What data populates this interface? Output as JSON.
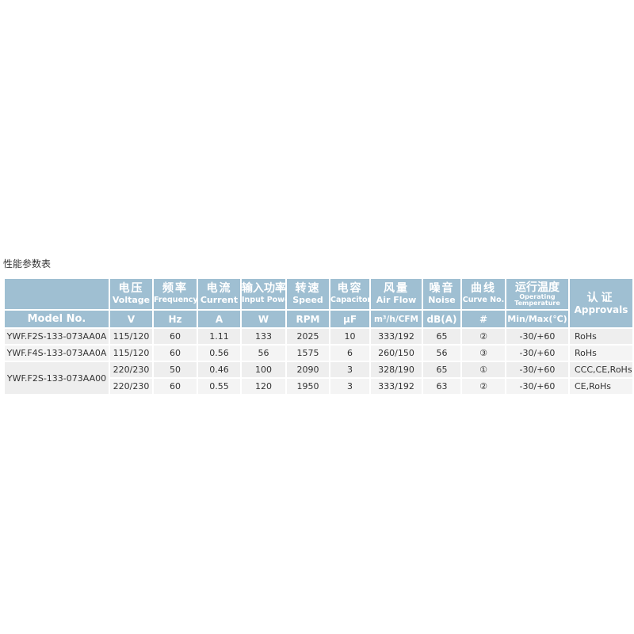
{
  "title": "性能参数表",
  "header": {
    "columns": [
      {
        "zh": "电压",
        "en": "Voltage",
        "unit": "V"
      },
      {
        "zh": "频率",
        "en": "Frequency",
        "unit": "Hz"
      },
      {
        "zh": "电流",
        "en": "Current",
        "unit": "A"
      },
      {
        "zh": "输入功率",
        "en": "Input Power",
        "unit": "W"
      },
      {
        "zh": "转速",
        "en": "Speed",
        "unit": "RPM"
      },
      {
        "zh": "电容",
        "en": "Capacitor",
        "unit": "μF"
      },
      {
        "zh": "风量",
        "en": "Air Flow",
        "unit": "m³/h/CFM"
      },
      {
        "zh": "噪音",
        "en": "Noise",
        "unit": "dB(A)"
      },
      {
        "zh": "曲线",
        "en": "Curve No.",
        "unit": "#"
      },
      {
        "zh": "运行温度",
        "en1": "Operating",
        "en2": "Temperature",
        "unit": "Min/Max(℃)"
      }
    ],
    "model": "Model No.",
    "approvals_zh": "认证",
    "approvals_en": "Approvals"
  },
  "rows": [
    {
      "model": "YWF.F2S-133-073AA0A",
      "cells": [
        "115/120",
        "60",
        "1.11",
        "133",
        "2025",
        "10",
        "333/192",
        "65",
        "②",
        "-30/+60"
      ],
      "approvals": "RoHs"
    },
    {
      "model": "YWF.F4S-133-073AA0A",
      "cells": [
        "115/120",
        "60",
        "0.56",
        "56",
        "1575",
        "6",
        "260/150",
        "56",
        "③",
        "-30/+60"
      ],
      "approvals": "RoHs"
    },
    {
      "model": "YWF.F2S-133-073AA00",
      "cells": [
        "220/230",
        "50",
        "0.46",
        "100",
        "2090",
        "3",
        "328/190",
        "65",
        "①",
        "-30/+60"
      ],
      "approvals": "CCC,CE,RoHs"
    },
    {
      "model": "",
      "cells": [
        "220/230",
        "60",
        "0.55",
        "120",
        "1950",
        "3",
        "333/192",
        "63",
        "②",
        "-30/+60"
      ],
      "approvals": "CE,RoHs"
    }
  ],
  "colors": {
    "header_bg": "#9fbfd2",
    "row_bg": "#eeeeee"
  }
}
